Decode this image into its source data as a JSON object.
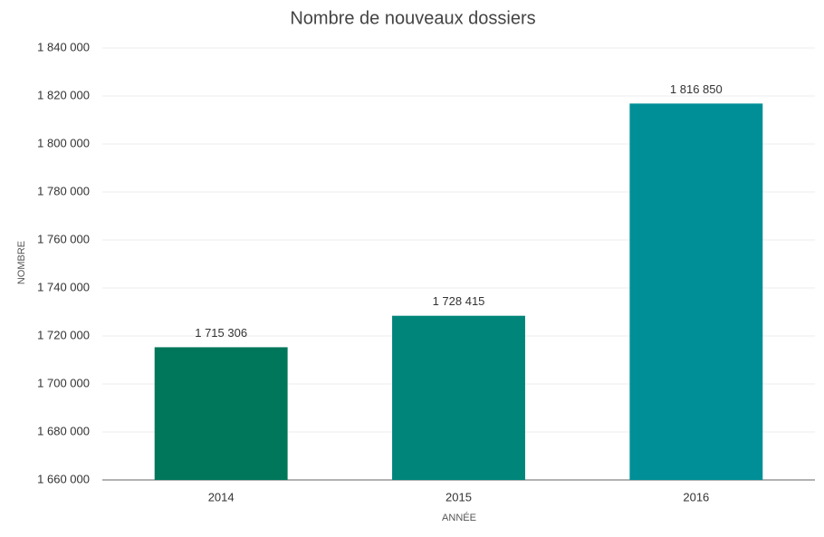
{
  "chart_data": {
    "type": "bar",
    "title": "Nombre de nouveaux dossiers",
    "x_label": "ANNÉE",
    "y_label": "NOMBRE",
    "categories": [
      "2014",
      "2015",
      "2016"
    ],
    "values": [
      1715306,
      1728415,
      1816850
    ],
    "value_labels": [
      "1 715 306",
      "1 728 415",
      "1 816 850"
    ],
    "colors": [
      "#00775a",
      "#00857a",
      "#008f96"
    ],
    "ylim": [
      1660000,
      1840000
    ],
    "yticks": [
      {
        "value": 1660000,
        "label": "1 660 000"
      },
      {
        "value": 1680000,
        "label": "1 680 000"
      },
      {
        "value": 1700000,
        "label": "1 700 000"
      },
      {
        "value": 1720000,
        "label": "1 720 000"
      },
      {
        "value": 1740000,
        "label": "1 740 000"
      },
      {
        "value": 1760000,
        "label": "1 760 000"
      },
      {
        "value": 1780000,
        "label": "1 780 000"
      },
      {
        "value": 1800000,
        "label": "1 800 000"
      },
      {
        "value": 1820000,
        "label": "1 820 000"
      },
      {
        "value": 1840000,
        "label": "1 840 000"
      }
    ],
    "grid": true
  }
}
